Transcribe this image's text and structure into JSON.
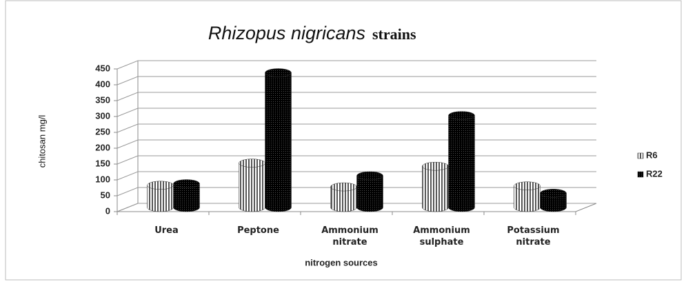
{
  "chart_data": {
    "type": "bar",
    "title_parts": [
      "Rhizopus nigricans",
      "strains"
    ],
    "y_label": "chitosan mg/l",
    "x_label": "nitrogen sources",
    "categories": [
      "Urea",
      "Peptone",
      "Ammonium nitrate",
      "Ammonium sulphate",
      "Potassium nitrate"
    ],
    "series": [
      {
        "name": "R6",
        "color": "#aaaaaa",
        "values": [
          70,
          140,
          65,
          130,
          68
        ]
      },
      {
        "name": "R22",
        "color": "#111111",
        "values": [
          75,
          425,
          100,
          290,
          45
        ]
      }
    ],
    "ylim": [
      0,
      450
    ],
    "yticks": [
      0,
      50,
      100,
      150,
      200,
      250,
      300,
      350,
      400,
      450
    ],
    "grid": true,
    "legend": "right"
  }
}
